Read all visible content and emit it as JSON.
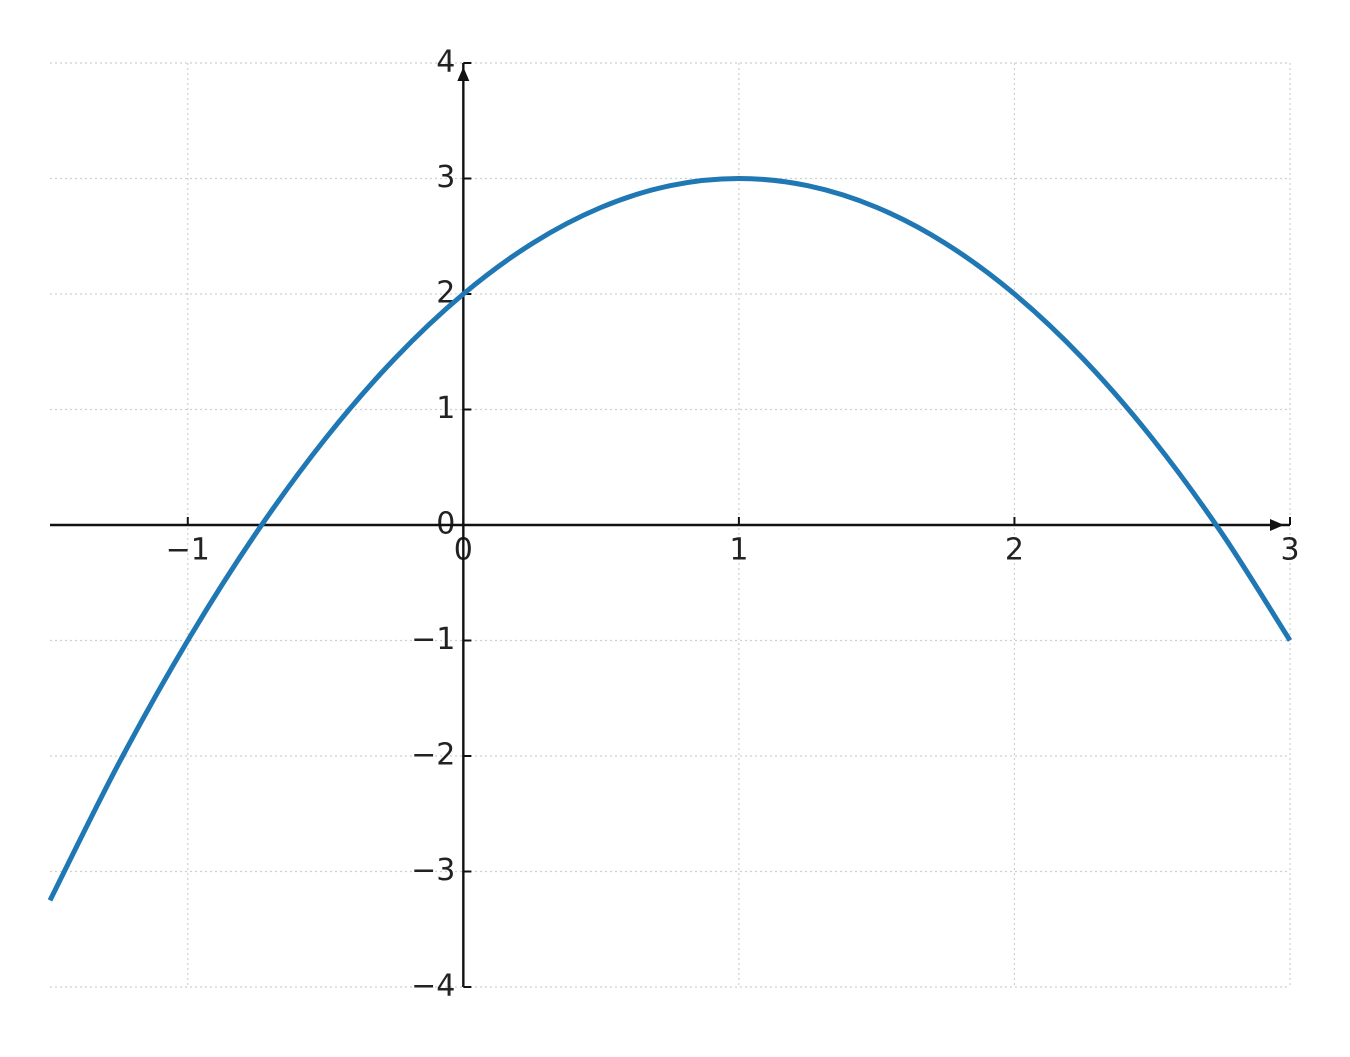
{
  "chart_data": {
    "type": "line",
    "x": [
      -1.5,
      -1.25,
      -1,
      -0.75,
      -0.5,
      -0.25,
      0,
      0.25,
      0.5,
      0.75,
      1,
      1.25,
      1.5,
      1.75,
      2,
      2.25,
      2.5,
      2.75,
      3
    ],
    "series": [
      {
        "color": "#1f77b4",
        "values": [
          -3.25,
          -2.0625,
          -1,
          -0.0625,
          0.75,
          1.4375,
          2,
          2.4375,
          2.75,
          2.9375,
          3,
          2.9375,
          2.75,
          2.4375,
          2,
          1.4375,
          0.75,
          -0.0625,
          -1
        ]
      }
    ],
    "xlim": [
      -1.5,
      3
    ],
    "ylim": [
      -4,
      4
    ],
    "xticks": [
      {
        "value": -1,
        "label": "−1"
      },
      0,
      1,
      2,
      3
    ],
    "yticks": [
      {
        "value": -4,
        "label": "−4"
      },
      {
        "value": -3,
        "label": "−3"
      },
      {
        "value": -2,
        "label": "−2"
      },
      {
        "value": -1,
        "label": "−1"
      },
      0,
      1,
      2,
      3,
      4
    ],
    "grid": true
  }
}
